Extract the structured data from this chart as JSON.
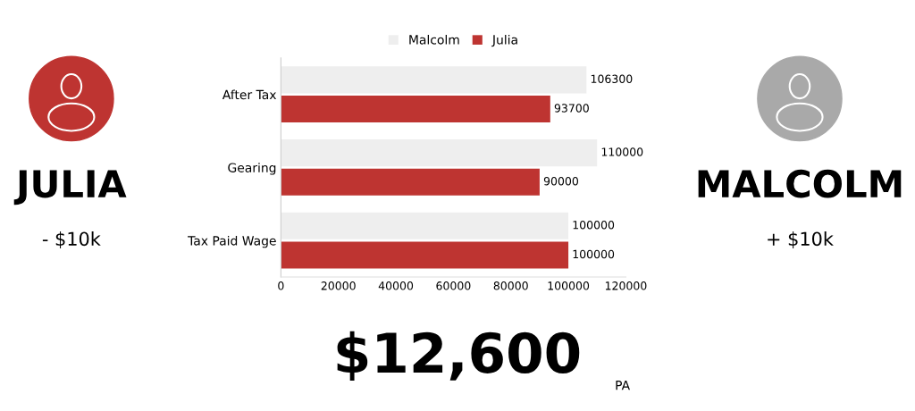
{
  "chart_data": {
    "type": "bar",
    "orientation": "horizontal",
    "categories": [
      "After Tax",
      "Gearing",
      "Tax Paid Wage"
    ],
    "series": [
      {
        "name": "Malcolm",
        "color": "#eeeeee",
        "values": [
          106300,
          110000,
          100000
        ]
      },
      {
        "name": "Julia",
        "color": "#be3431",
        "values": [
          93700,
          90000,
          100000
        ]
      }
    ],
    "xlim": [
      0,
      120000
    ],
    "xticks": [
      0,
      20000,
      40000,
      60000,
      80000,
      100000,
      120000
    ],
    "data_labels": true,
    "legend": "top",
    "grid": false,
    "annotations": [
      "JULIA",
      "- $10k",
      "MALCOLM",
      "+ $10k",
      "$12,600",
      "PA"
    ]
  }
}
